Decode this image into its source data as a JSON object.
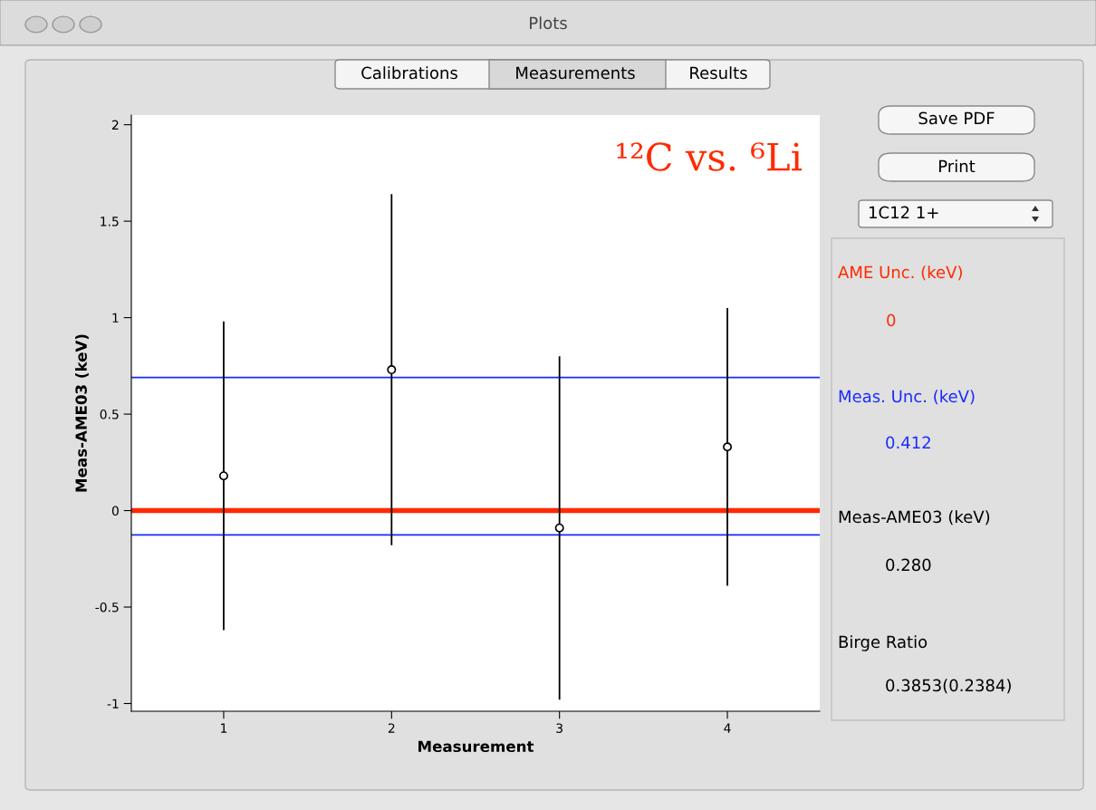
{
  "chart_data": {
    "type": "scatter",
    "title": "¹²C vs. ⁶Li",
    "xlabel": "Measurement",
    "ylabel": "Meas-AME03 (keV)",
    "x": [
      1,
      2,
      3,
      4
    ],
    "series": [
      {
        "color": "#000000",
        "values": [
          0.18,
          0.73,
          -0.09,
          0.33
        ],
        "errors": [
          0.8,
          0.91,
          0.89,
          0.72
        ]
      }
    ],
    "marker": "circle",
    "grid": false,
    "xlim": [
      0.45,
      4.55
    ],
    "xticks": [
      1,
      2,
      3,
      4
    ],
    "ylim": [
      -1.04,
      2.05
    ],
    "yticks": [
      -1,
      -0.5,
      0,
      0.5,
      1,
      1.5,
      2
    ],
    "ref_lines": [
      {
        "axis": "y",
        "value": 0,
        "color": "#ff2a00"
      },
      {
        "axis": "y",
        "value": 0.69,
        "color": "#1a2bff"
      },
      {
        "axis": "y",
        "value": -0.126,
        "color": "#1a2bff"
      }
    ],
    "annotations": [
      "Plots",
      "Calibrations",
      "Measurements",
      "Results",
      "Save PDF",
      "Print",
      "1C12 1+",
      "AME Unc. (keV)",
      "0",
      "Meas. Unc. (keV)",
      "0.412",
      "Meas-AME03 (keV)",
      "0.280",
      "Birge Ratio",
      "0.3853(0.2384)"
    ]
  }
}
